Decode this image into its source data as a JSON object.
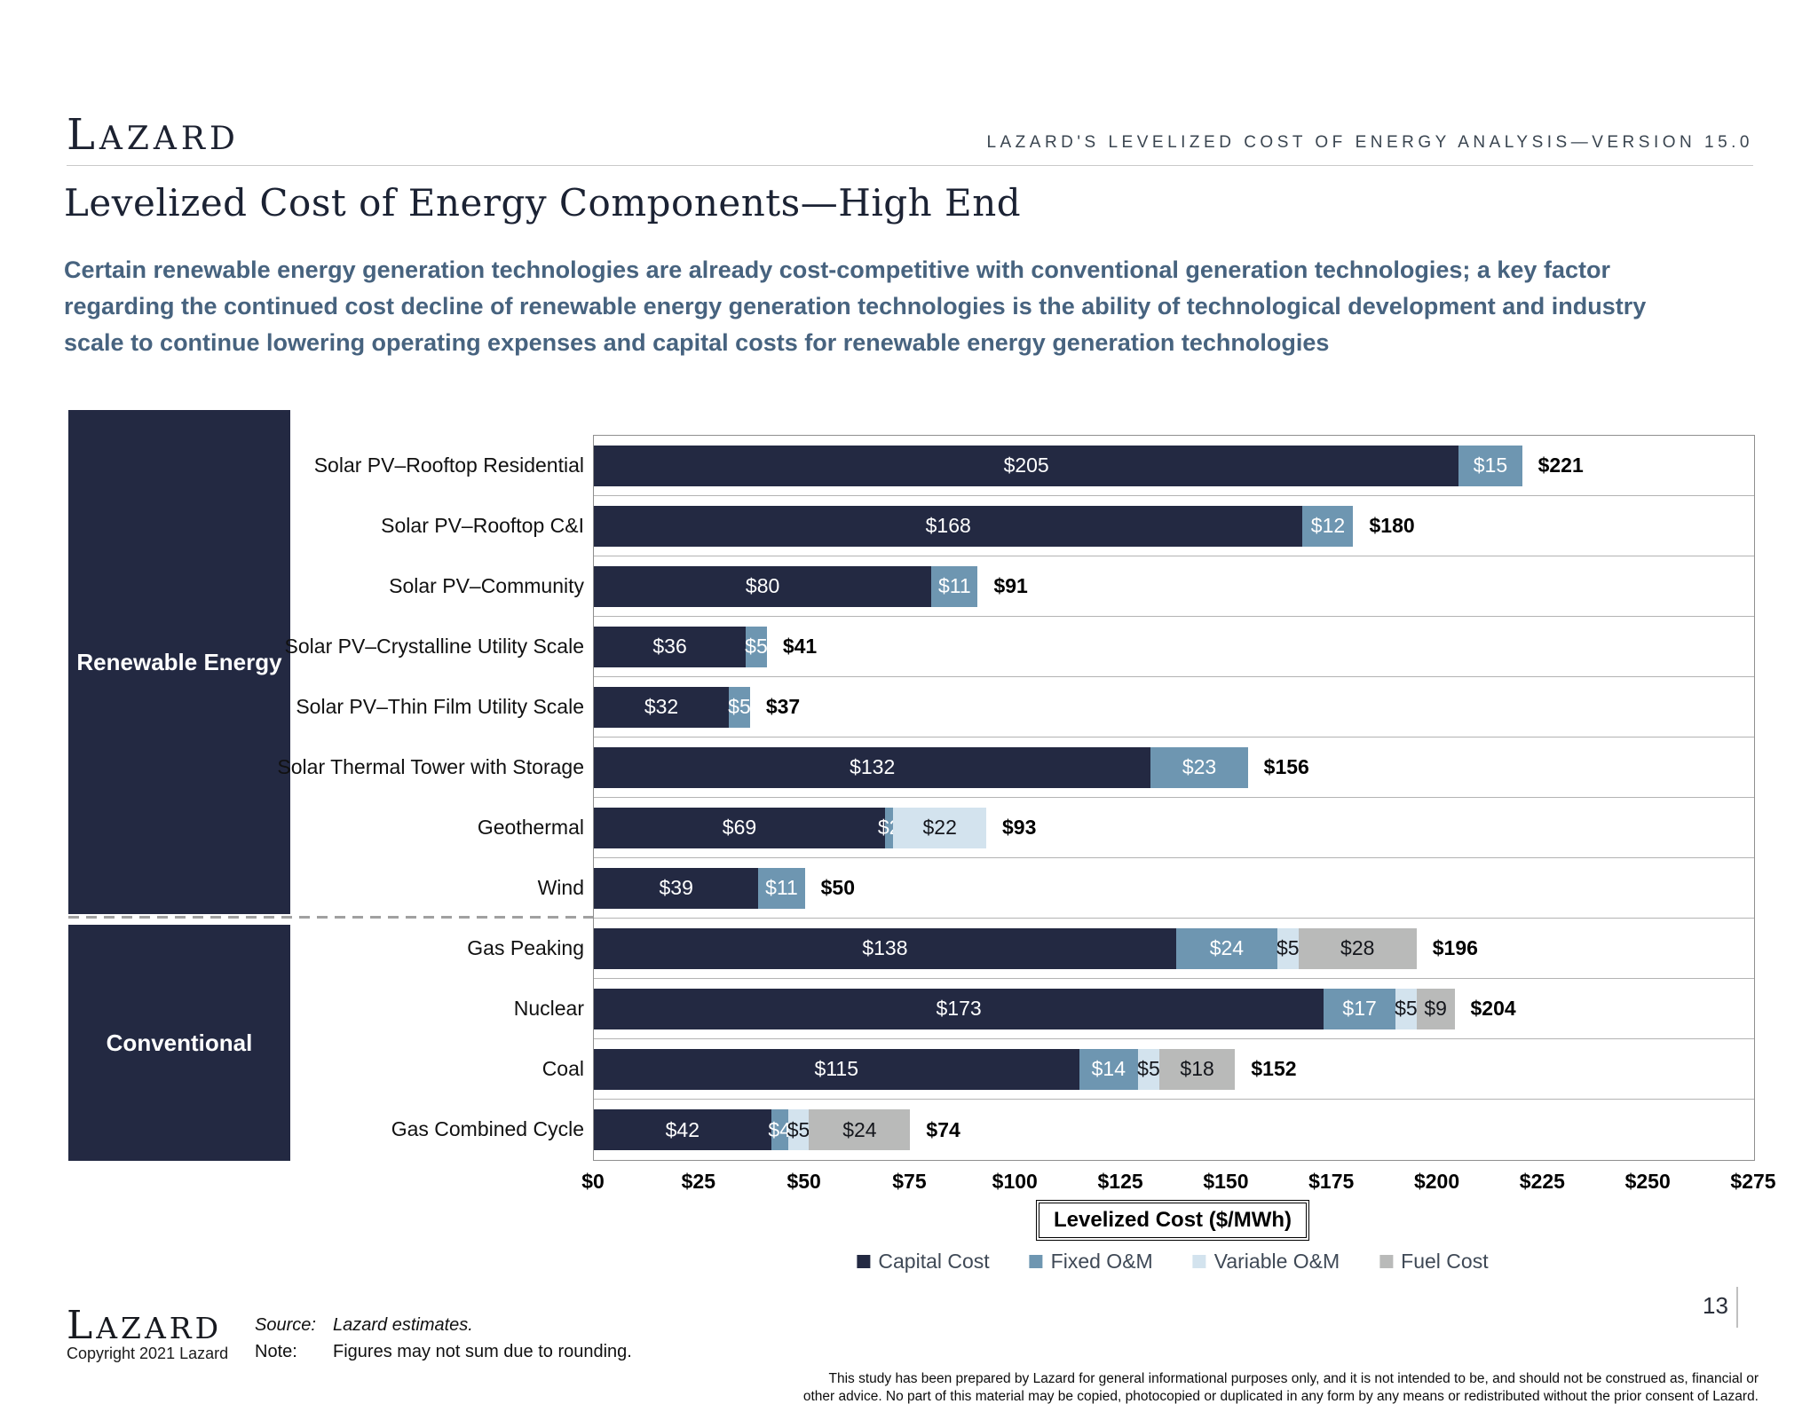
{
  "header": {
    "logo": "LAZARD",
    "right_text": "LAZARD'S LEVELIZED COST OF ENERGY ANALYSIS—VERSION 15.0"
  },
  "title": "Levelized Cost of Energy Components—High End",
  "subtitle_lines": [
    "Certain renewable energy generation technologies are already cost-competitive with conventional generation technologies; a key factor",
    "regarding the continued cost decline of renewable energy generation technologies is the ability of technological development and industry",
    "scale to continue lowering operating expenses and capital costs for renewable energy generation technologies"
  ],
  "chart_data": {
    "type": "bar",
    "orientation": "horizontal",
    "stacked": true,
    "categories": [
      "Solar PV–Rooftop Residential",
      "Solar PV–Rooftop C&I",
      "Solar PV–Community",
      "Solar PV–Crystalline Utility Scale",
      "Solar PV–Thin Film Utility Scale",
      "Solar Thermal Tower with Storage",
      "Geothermal",
      "Wind",
      "Gas Peaking",
      "Nuclear",
      "Coal",
      "Gas Combined Cycle"
    ],
    "series": [
      {
        "name": "Capital Cost",
        "color": "#232942",
        "label_color": "#ffffff",
        "values": [
          205,
          168,
          80,
          36,
          32,
          132,
          69,
          39,
          138,
          173,
          115,
          42
        ]
      },
      {
        "name": "Fixed O&M",
        "color": "#6e96b1",
        "label_color": "#ffffff",
        "values": [
          15,
          12,
          11,
          5,
          5,
          23,
          2,
          11,
          24,
          17,
          14,
          4
        ]
      },
      {
        "name": "Variable O&M",
        "color": "#d3e3ee",
        "label_color": "#14161c",
        "values": [
          0,
          0,
          0,
          0,
          0,
          0,
          22,
          0,
          5,
          5,
          5,
          5
        ]
      },
      {
        "name": "Fuel Cost",
        "color": "#b9bab9",
        "label_color": "#14161c",
        "values": [
          0,
          0,
          0,
          0,
          0,
          0,
          0,
          0,
          28,
          9,
          18,
          24
        ]
      }
    ],
    "totals": [
      221,
      180,
      91,
      41,
      37,
      156,
      93,
      50,
      196,
      204,
      152,
      74
    ],
    "groups": [
      {
        "label": "Renewable Energy",
        "rows": [
          0,
          7
        ]
      },
      {
        "label": "Conventional",
        "rows": [
          8,
          11
        ]
      }
    ],
    "xlabel": "Levelized Cost ($/MWh)",
    "xlim": [
      0,
      275
    ],
    "xticks": [
      0,
      25,
      50,
      75,
      100,
      125,
      150,
      175,
      200,
      225,
      250,
      275
    ],
    "grid": "row-separators",
    "legend_position": "bottom"
  },
  "footer": {
    "logo": "LAZARD",
    "copyright": "Copyright 2021 Lazard",
    "source_label": "Source:",
    "source_text": "Lazard estimates.",
    "note_label": "Note:",
    "note_text": "Figures may not sum due to rounding.",
    "disclaimer_line1": "This study has been prepared by Lazard for general informational purposes only, and it is not intended to be, and should not be construed as, financial or",
    "disclaimer_line2": "other advice. No part of this material may be copied, photocopied or duplicated in any form by any means or redistributed without the prior consent of Lazard.",
    "page_number": "13"
  }
}
